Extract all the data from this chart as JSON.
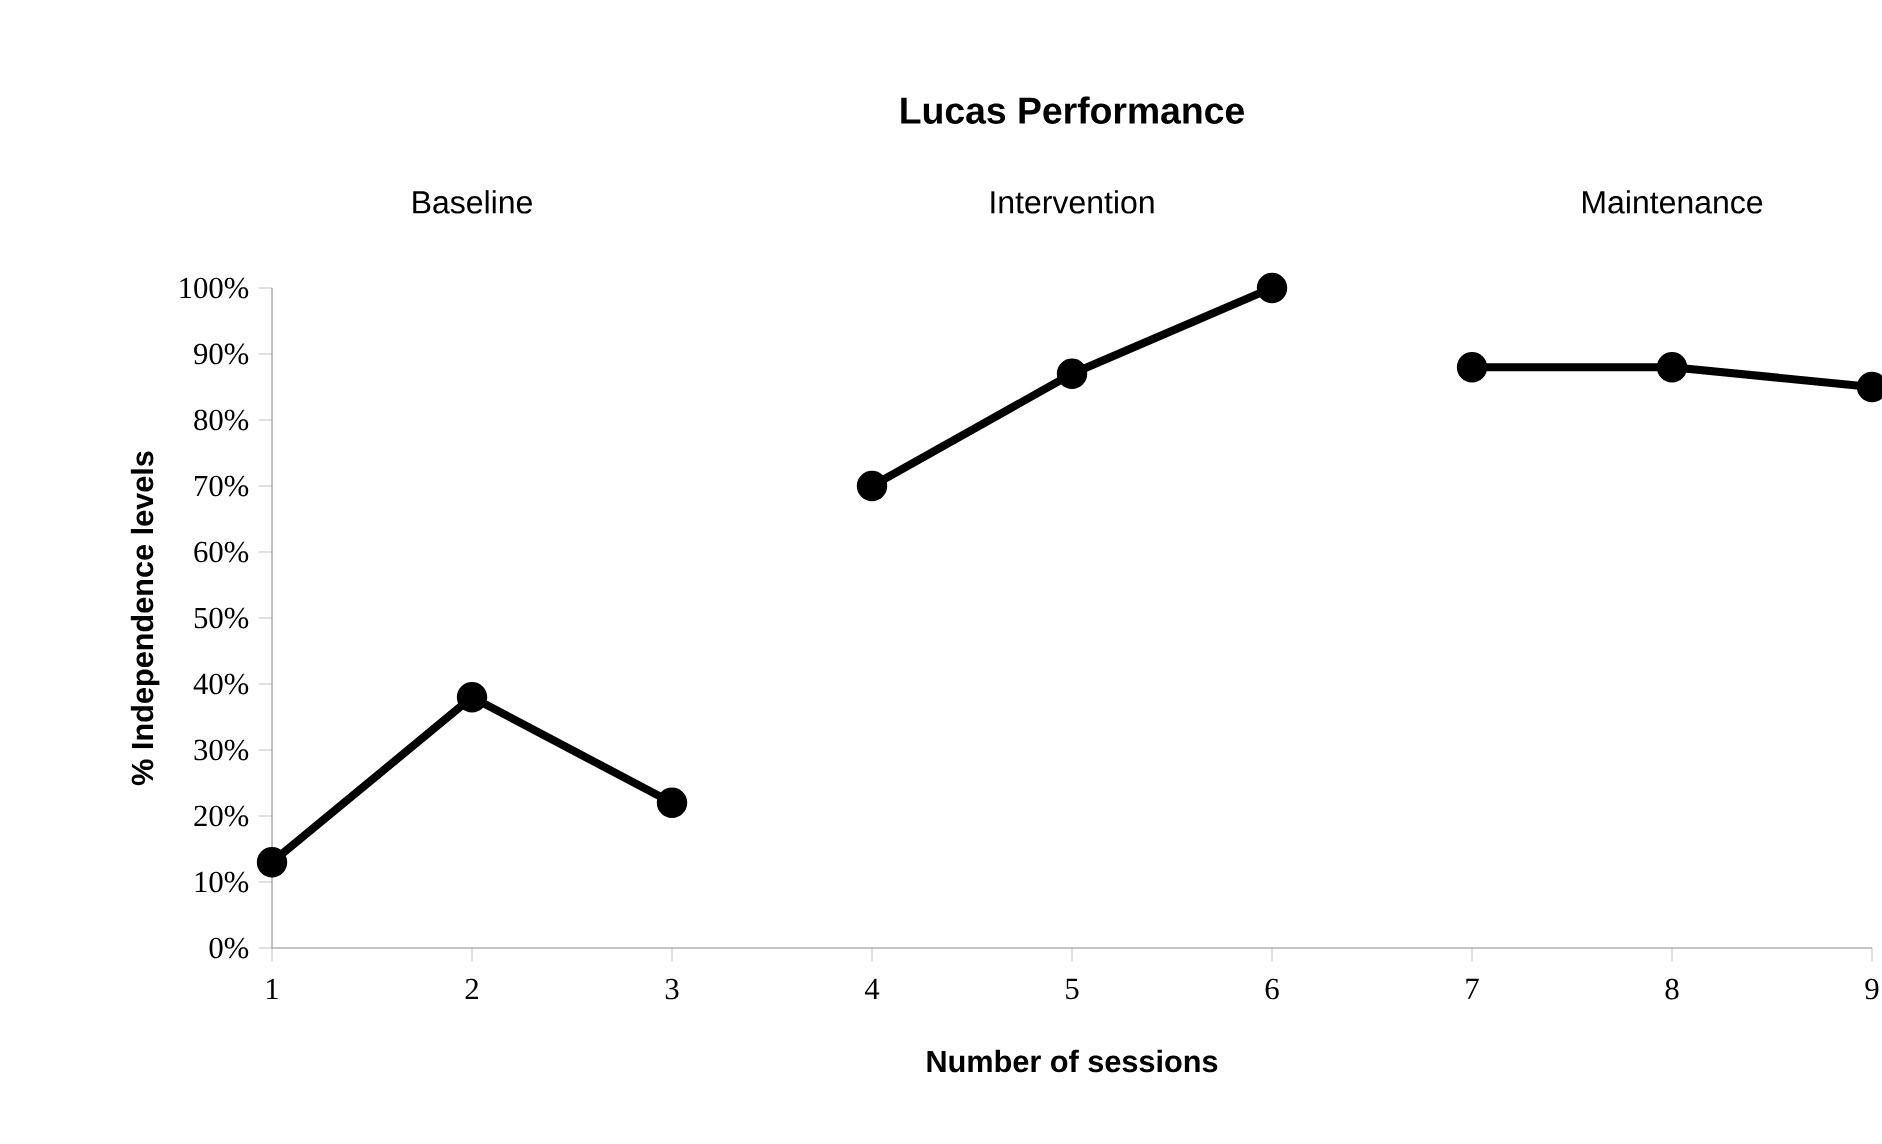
{
  "chart_data": {
    "type": "line",
    "title": "Lucas Performance",
    "xlabel": "Number of sessions",
    "ylabel": "% Independence levels",
    "annotations": [
      "Baseline",
      "Intervention",
      "Maintenance"
    ],
    "series": [
      {
        "color": "#000000",
        "x": [
          1,
          2,
          3
        ],
        "values": [
          13,
          38,
          22
        ]
      },
      {
        "color": "#000000",
        "x": [
          4,
          5,
          6
        ],
        "values": [
          70,
          87,
          100
        ]
      },
      {
        "color": "#000000",
        "x": [
          7,
          8,
          9
        ],
        "values": [
          88,
          88,
          85
        ]
      }
    ],
    "xlim": [
      1,
      9
    ],
    "xticks": [
      1,
      2,
      3,
      4,
      5,
      6,
      7,
      8,
      9
    ],
    "ylim": [
      0,
      100
    ],
    "yticks": [
      {
        "value": 0,
        "label": "0%"
      },
      {
        "value": 10,
        "label": "10%"
      },
      {
        "value": 20,
        "label": "20%"
      },
      {
        "value": 30,
        "label": "30%"
      },
      {
        "value": 40,
        "label": "40%"
      },
      {
        "value": 50,
        "label": "50%"
      },
      {
        "value": 60,
        "label": "60%"
      },
      {
        "value": 70,
        "label": "70%"
      },
      {
        "value": 80,
        "label": "80%"
      },
      {
        "value": 90,
        "label": "90%"
      },
      {
        "value": 100,
        "label": "100%"
      }
    ],
    "grid": false,
    "marker": "circle",
    "line_style": "solid"
  }
}
